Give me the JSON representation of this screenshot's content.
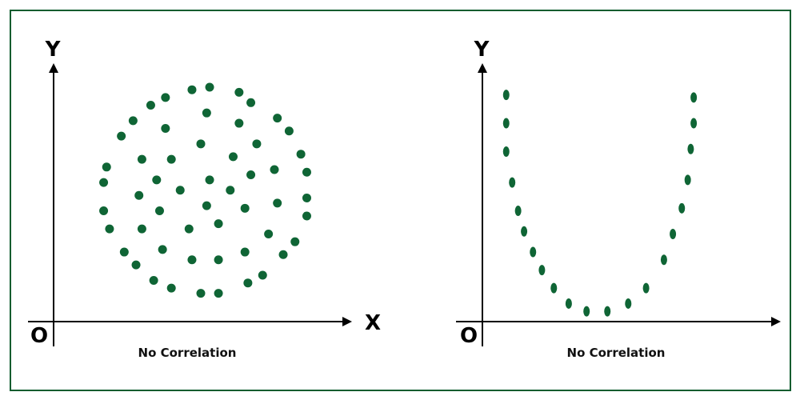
{
  "colors": {
    "border": "#0e5c2f",
    "dots": "#0f6535",
    "axes": "#000000"
  },
  "chart_data": [
    {
      "type": "scatter",
      "title": "",
      "caption": "No Correlation",
      "xlabel": "X",
      "ylabel": "Y",
      "origin_label": "O",
      "xlim": [
        0,
        100
      ],
      "ylim": [
        0,
        100
      ],
      "grid": false,
      "points": [
        [
          47,
          90
        ],
        [
          53,
          91
        ],
        [
          63,
          89
        ],
        [
          67,
          85
        ],
        [
          33,
          84
        ],
        [
          38,
          87
        ],
        [
          27,
          78
        ],
        [
          23,
          72
        ],
        [
          38,
          75
        ],
        [
          52,
          81
        ],
        [
          63,
          77
        ],
        [
          76,
          79
        ],
        [
          80,
          74
        ],
        [
          69,
          69
        ],
        [
          50,
          69
        ],
        [
          61,
          64
        ],
        [
          84,
          65
        ],
        [
          18,
          60
        ],
        [
          30,
          63
        ],
        [
          40,
          63
        ],
        [
          17,
          54
        ],
        [
          35,
          55
        ],
        [
          43,
          51
        ],
        [
          53,
          55
        ],
        [
          60,
          51
        ],
        [
          67,
          57
        ],
        [
          75,
          59
        ],
        [
          86,
          58
        ],
        [
          17,
          43
        ],
        [
          29,
          49
        ],
        [
          36,
          43
        ],
        [
          52,
          45
        ],
        [
          65,
          44
        ],
        [
          76,
          46
        ],
        [
          86,
          48
        ],
        [
          86,
          41
        ],
        [
          19,
          36
        ],
        [
          30,
          36
        ],
        [
          46,
          36
        ],
        [
          56,
          38
        ],
        [
          73,
          34
        ],
        [
          82,
          31
        ],
        [
          24,
          27
        ],
        [
          37,
          28
        ],
        [
          47,
          24
        ],
        [
          56,
          24
        ],
        [
          65,
          27
        ],
        [
          78,
          26
        ],
        [
          28,
          22
        ],
        [
          34,
          16
        ],
        [
          40,
          13
        ],
        [
          50,
          11
        ],
        [
          56,
          11
        ],
        [
          66,
          15
        ],
        [
          71,
          18
        ]
      ]
    },
    {
      "type": "scatter",
      "title": "",
      "caption": "No Correlation",
      "xlabel": "",
      "ylabel": "Y",
      "origin_label": "O",
      "xlim": [
        0,
        100
      ],
      "ylim": [
        0,
        100
      ],
      "grid": false,
      "points": [
        [
          8,
          88
        ],
        [
          8,
          77
        ],
        [
          8,
          66
        ],
        [
          10,
          54
        ],
        [
          12,
          43
        ],
        [
          14,
          35
        ],
        [
          17,
          27
        ],
        [
          20,
          20
        ],
        [
          24,
          13
        ],
        [
          29,
          7
        ],
        [
          35,
          4
        ],
        [
          42,
          4
        ],
        [
          49,
          7
        ],
        [
          55,
          13
        ],
        [
          61,
          24
        ],
        [
          64,
          34
        ],
        [
          67,
          44
        ],
        [
          69,
          55
        ],
        [
          70,
          67
        ],
        [
          71,
          77
        ],
        [
          71,
          87
        ]
      ]
    }
  ]
}
